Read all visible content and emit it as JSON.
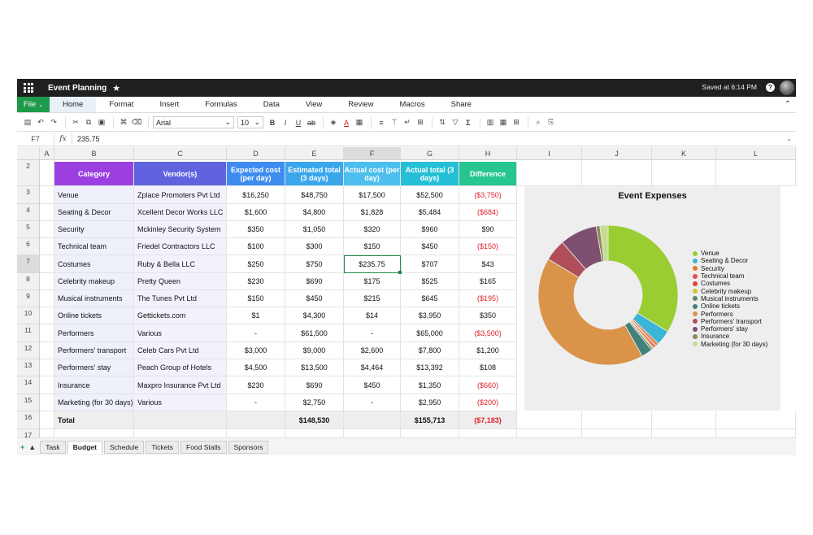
{
  "titlebar": {
    "doc_title": "Event Planning",
    "saved_status": "Saved at 6:14 PM",
    "help_label": "?"
  },
  "menu": {
    "file_label": "File",
    "tabs": [
      {
        "label": "Home",
        "active": true
      },
      {
        "label": "Format"
      },
      {
        "label": "Insert"
      },
      {
        "label": "Formulas"
      },
      {
        "label": "Data"
      },
      {
        "label": "View"
      },
      {
        "label": "Review"
      },
      {
        "label": "Macros"
      },
      {
        "label": "Share"
      }
    ]
  },
  "toolbar": {
    "font_family": "Arial",
    "font_size": "10",
    "bold": "B",
    "italic": "I",
    "underline": "U",
    "strike": "ab",
    "font_color": "A",
    "sigma": "Σ"
  },
  "formula_bar": {
    "cell_ref": "F7",
    "fx_label": "fx",
    "value": "235.75"
  },
  "columns": [
    "A",
    "B",
    "C",
    "D",
    "E",
    "F",
    "G",
    "H",
    "I",
    "J",
    "K",
    "L"
  ],
  "rows": [
    "2",
    "3",
    "4",
    "5",
    "6",
    "7",
    "8",
    "9",
    "10",
    "11",
    "12",
    "13",
    "14",
    "15",
    "16",
    "17"
  ],
  "table": {
    "headers": [
      "Category",
      "Vendor(s)",
      "Expected cost (per day)",
      "Estimated total (3 days)",
      "Actual cost (per day)",
      "Actual total (3 days)",
      "Difference"
    ],
    "header_colors": [
      "#9b3fe0",
      "#5f64de",
      "#3f8cf0",
      "#3aa6ec",
      "#4dbfee",
      "#26c0d6",
      "#27c58f"
    ],
    "rows": [
      [
        "Venue",
        "Zplace Promoters Pvt Ltd",
        "$16,250",
        "$48,750",
        "$17,500",
        "$52,500",
        "($3,750)"
      ],
      [
        "Seating & Decor",
        "Xcellent Decor Works LLC",
        "$1,600",
        "$4,800",
        "$1,828",
        "$5,484",
        "($684)"
      ],
      [
        "Security",
        "Mckinley Security System",
        "$350",
        "$1,050",
        "$320",
        "$960",
        "$90"
      ],
      [
        "Technical team",
        "Friedel Contractors LLC",
        "$100",
        "$300",
        "$150",
        "$450",
        "($150)"
      ],
      [
        "Costumes",
        "Ruby & Bella LLC",
        "$250",
        "$750",
        "$235.75",
        "$707",
        "$43"
      ],
      [
        "Celebrity makeup",
        "Pretty Queen",
        "$230",
        "$690",
        "$175",
        "$525",
        "$165"
      ],
      [
        "Musical instruments",
        "The Tunes Pvt Ltd",
        "$150",
        "$450",
        "$215",
        "$645",
        "($195)"
      ],
      [
        "Online tickets",
        "Gettickets.com",
        "$1",
        "$4,300",
        "$14",
        "$3,950",
        "$350"
      ],
      [
        "Performers",
        "Various",
        "-",
        "$61,500",
        "-",
        "$65,000",
        "($3,500)"
      ],
      [
        "Performers' transport",
        "Celeb Cars Pvt Ltd",
        "$3,000",
        "$9,000",
        "$2,600",
        "$7,800",
        "$1,200"
      ],
      [
        "Performers' stay",
        "Peach Group of Hotels",
        "$4,500",
        "$13,500",
        "$4,464",
        "$13,392",
        "$108"
      ],
      [
        "Insurance",
        "Maxpro Insurance Pvt Ltd",
        "$230",
        "$690",
        "$450",
        "$1,350",
        "($660)"
      ],
      [
        "Marketing (for 30 days)",
        "Various",
        "-",
        "$2,750",
        "-",
        "$2,950",
        "($200)"
      ]
    ],
    "total": {
      "label": "Total",
      "estimated": "$148,530",
      "actual": "$155,713",
      "difference": "($7,183)"
    }
  },
  "chart_data": {
    "type": "pie",
    "title": "Event Expenses",
    "legend_position": "right",
    "categories": [
      "Venue",
      "Seating & Decor",
      "Security",
      "Technical team",
      "Costumes",
      "Celebrity makeup",
      "Musical instruments",
      "Online tickets",
      "Performers",
      "Performers' transport",
      "Performers' stay",
      "Insurance",
      "Marketing (for 30 days)"
    ],
    "values": [
      52500,
      5484,
      960,
      450,
      707,
      525,
      645,
      3950,
      65000,
      7800,
      13392,
      1350,
      2950
    ],
    "colors": [
      "#9acd32",
      "#3ab5d8",
      "#e8762c",
      "#e0504a",
      "#e8412f",
      "#d8c22a",
      "#5b8a6a",
      "#43807b",
      "#d9944a",
      "#b04e5a",
      "#7e4f6e",
      "#8d8660",
      "#c6de8c"
    ]
  },
  "sheet_tabs": {
    "add": "+",
    "up": "▲",
    "tabs": [
      "Task",
      "Budget",
      "Schedule",
      "Tickets",
      "Food Stalls",
      "Sponsors"
    ],
    "active": "Budget"
  }
}
